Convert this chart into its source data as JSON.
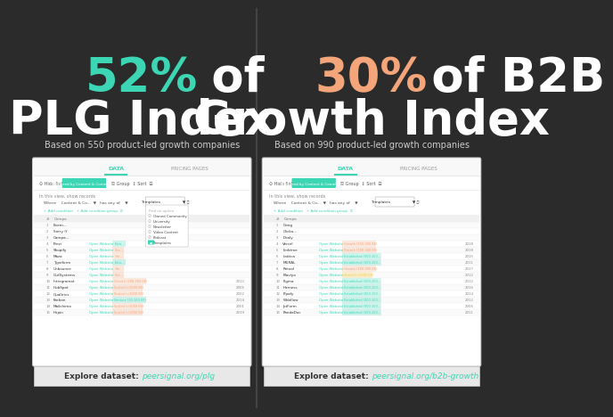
{
  "bg_color": "#2b2b2b",
  "divider_color": "#444444",
  "left": {
    "percent": "52%",
    "percent_color": "#3dd6b5",
    "of_text": " of",
    "of_color": "#ffffff",
    "title": "PLG Index",
    "title_color": "#ffffff",
    "subtitle": "Based on 550 product-led growth companies",
    "subtitle_color": "#cccccc",
    "explore_text": "Explore dataset: ",
    "explore_link": "peersignal.org/plg",
    "explore_link_color": "#3dd6b5"
  },
  "right": {
    "percent": "30%",
    "percent_color": "#f4a57a",
    "of_text": " of B2B",
    "of_color": "#ffffff",
    "title": "Growth Index",
    "title_color": "#ffffff",
    "subtitle": "Based on 990 product-led growth companies",
    "subtitle_color": "#cccccc",
    "explore_text": "Explore dataset: ",
    "explore_link": "peersignal.org/b2b-growth",
    "explore_link_color": "#3dd6b5"
  },
  "screenshot_bg": "#f5f5f5",
  "screenshot_border": "#dddddd"
}
